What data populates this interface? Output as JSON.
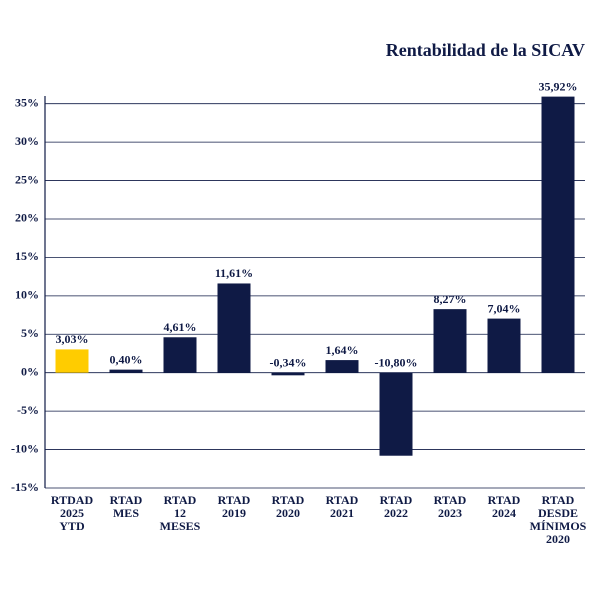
{
  "chart_data": {
    "type": "bar",
    "title": "Rentabilidad de la SICAV",
    "categories": [
      [
        "RTDAD",
        "2025",
        "YTD"
      ],
      [
        "RTAD",
        "MES"
      ],
      [
        "RTAD",
        "12",
        "MESES"
      ],
      [
        "RTAD",
        "2019"
      ],
      [
        "RTAD",
        "2020"
      ],
      [
        "RTAD",
        "2021"
      ],
      [
        "RTAD",
        "2022"
      ],
      [
        "RTAD",
        "2023"
      ],
      [
        "RTAD",
        "2024"
      ],
      [
        "RTAD",
        "DESDE",
        "MÍNIMOS",
        "2020"
      ]
    ],
    "values": [
      3.03,
      0.4,
      4.61,
      11.61,
      -0.34,
      1.64,
      -10.8,
      8.27,
      7.04,
      35.92
    ],
    "value_labels": [
      "3,03%",
      "0,40%",
      "4,61%",
      "11,61%",
      "-0,34%",
      "1,64%",
      "-10,80%",
      "8,27%",
      "7,04%",
      "35,92%"
    ],
    "colors": [
      "#ffcc00",
      "#0f1a45",
      "#0f1a45",
      "#0f1a45",
      "#0f1a45",
      "#0f1a45",
      "#0f1a45",
      "#0f1a45",
      "#0f1a45",
      "#0f1a45"
    ],
    "ylim": [
      -15,
      36
    ],
    "yticks": [
      {
        "value": -15,
        "label": "-15%"
      },
      {
        "value": -10,
        "label": "-10%"
      },
      {
        "value": -5,
        "label": "-5%"
      },
      {
        "value": 0,
        "label": "0%"
      },
      {
        "value": 5,
        "label": "5%"
      },
      {
        "value": 10,
        "label": "10%"
      },
      {
        "value": 15,
        "label": "15%"
      },
      {
        "value": 20,
        "label": "20%"
      },
      {
        "value": 25,
        "label": "25%"
      },
      {
        "value": 30,
        "label": "30%"
      },
      {
        "value": 35,
        "label": "35%"
      }
    ],
    "grid": true
  }
}
